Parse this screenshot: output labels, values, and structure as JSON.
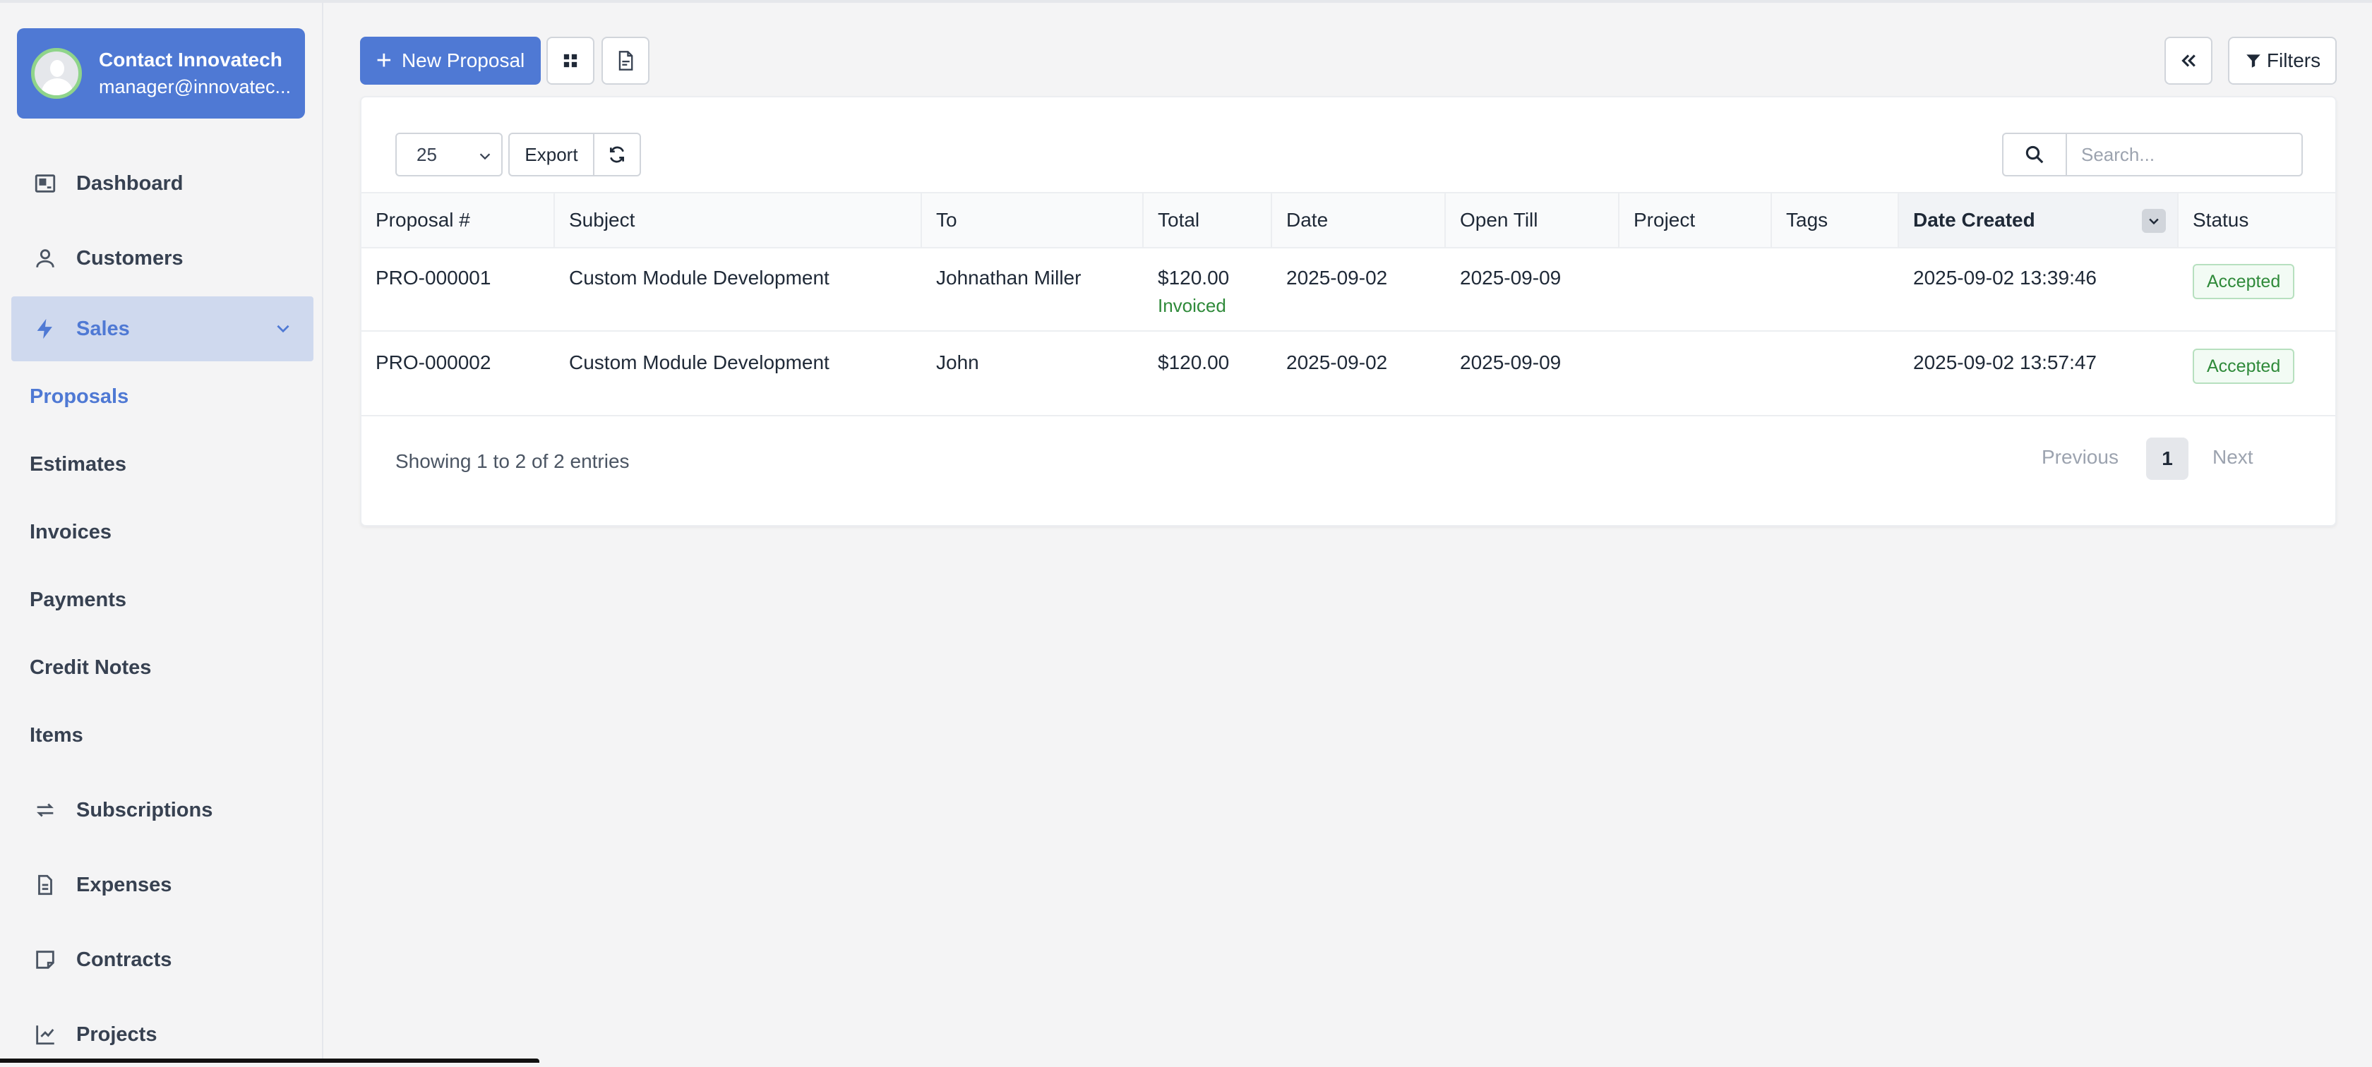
{
  "profile": {
    "name": "Contact Innovatech",
    "email": "manager@innovatec..."
  },
  "nav": {
    "dashboard": "Dashboard",
    "customers": "Customers",
    "sales": "Sales",
    "sales_sub": [
      "Proposals",
      "Estimates",
      "Invoices",
      "Payments",
      "Credit Notes",
      "Items"
    ],
    "subscriptions": "Subscriptions",
    "expenses": "Expenses",
    "contracts": "Contracts",
    "projects": "Projects"
  },
  "toolbar": {
    "new_proposal": "New Proposal",
    "filters": "Filters"
  },
  "table_controls": {
    "page_length": "25",
    "export": "Export",
    "search_placeholder": "Search..."
  },
  "columns": [
    "Proposal #",
    "Subject",
    "To",
    "Total",
    "Date",
    "Open Till",
    "Project",
    "Tags",
    "Date Created",
    "Status"
  ],
  "rows": [
    {
      "number": "PRO-000001",
      "subject": "Custom Module Development",
      "to": "Johnathan Miller",
      "total": "$120.00",
      "total_note": "Invoiced",
      "date": "2025-09-02",
      "open_till": "2025-09-09",
      "project": "",
      "tags": "",
      "date_created": "2025-09-02 13:39:46",
      "status": "Accepted"
    },
    {
      "number": "PRO-000002",
      "subject": "Custom Module Development",
      "to": "John",
      "total": "$120.00",
      "total_note": "",
      "date": "2025-09-02",
      "open_till": "2025-09-09",
      "project": "",
      "tags": "",
      "date_created": "2025-09-02 13:57:47",
      "status": "Accepted"
    }
  ],
  "pagination": {
    "info": "Showing 1 to 2 of 2 entries",
    "previous": "Previous",
    "current": "1",
    "next": "Next"
  },
  "colors": {
    "accent": "#4f79d4",
    "success": "#2f8a3a"
  }
}
